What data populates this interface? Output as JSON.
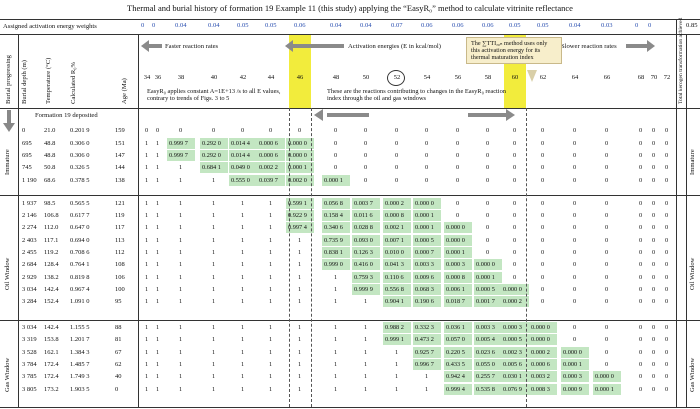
{
  "title": "Thermal and burial history of formation 19 Example 11 (this study) applying the “EasyR₀” method to calculate vitrinite reflectance",
  "weights_label": "Assigned activation energy weights",
  "weights": [
    "0",
    "0",
    "0.04",
    "0.04",
    "0.05",
    "0.05",
    "0.06",
    "0.04",
    "0.04",
    "0.07",
    "0.06",
    "0.06",
    "0.06",
    "0.05",
    "0.05",
    "0.04",
    "0.03",
    "0",
    "0",
    "0.85"
  ],
  "energies": [
    "34",
    "36",
    "38",
    "40",
    "42",
    "44",
    "46",
    "48",
    "50",
    "52",
    "54",
    "56",
    "58",
    "60",
    "62",
    "64",
    "66",
    "68",
    "70",
    "72"
  ],
  "header": {
    "faster": "Faster reaction rates",
    "activation": "Activation energies (E in kcal/mol)",
    "slower": "Slower reaction rates",
    "col_burial": "Burial progressing",
    "col_depth": "Burial depth (m)",
    "col_temp": "Temperature (°C)",
    "col_ro": "Calculated R₀%",
    "col_age": "Age (Ma)",
    "col_total": "Total kerogen transformation achieved",
    "callout": "The ∑TTIₐ₀ₙ method uses only this activation energy for its thermal maturation index"
  },
  "notes": {
    "easyro": "EasyR₀ applies constant A=1E+13 /s to all E values, contrary to trends of Figs. 3 to 5",
    "reactions": "These are the reactions contributing to changes in the EasyR₀ reaction index through the oil and gas windows",
    "deposited": "Formation 19 deposited"
  },
  "zones": [
    "Immature",
    "Oil Window",
    "Gas Window"
  ],
  "rows": [
    {
      "depth": "0",
      "temp": "21.0",
      "ro": "0.201 9",
      "age": "159",
      "cells": [
        "0",
        "0",
        "0",
        "0",
        "0",
        "0",
        "0",
        "0",
        "0",
        "0",
        "0",
        "0",
        "0",
        "0",
        "0",
        "0",
        "0",
        "0",
        "0",
        "0"
      ]
    },
    {
      "depth": "695",
      "temp": "48.8",
      "ro": "0.306 0",
      "age": "151",
      "cells": [
        "1",
        "1",
        "0.999 7",
        "0.292 0",
        "0.014 4",
        "0.000 6",
        "0.000 0",
        "0",
        "0",
        "0",
        "0",
        "0",
        "0",
        "0",
        "0",
        "0",
        "0",
        "0",
        "0",
        "0"
      ]
    },
    {
      "depth": "695",
      "temp": "48.8",
      "ro": "0.306 0",
      "age": "147",
      "cells": [
        "1",
        "1",
        "0.999 7",
        "0.292 0",
        "0.014 4",
        "0.000 6",
        "0.000 0",
        "0",
        "0",
        "0",
        "0",
        "0",
        "0",
        "0",
        "0",
        "0",
        "0",
        "0",
        "0",
        "0"
      ]
    },
    {
      "depth": "745",
      "temp": "50.8",
      "ro": "0.326 5",
      "age": "144",
      "cells": [
        "1",
        "1",
        "1",
        "0.684 1",
        "0.049 0",
        "0.002 2",
        "0.000 1",
        "0",
        "0",
        "0",
        "0",
        "0",
        "0",
        "0",
        "0",
        "0",
        "0",
        "0",
        "0",
        "0"
      ]
    },
    {
      "depth": "1 190",
      "temp": "68.6",
      "ro": "0.378 5",
      "age": "138",
      "cells": [
        "1",
        "1",
        "1",
        "1",
        "0.555 0",
        "0.039 7",
        "0.002 0",
        "0.000 1",
        "0",
        "0",
        "0",
        "0",
        "0",
        "0",
        "0",
        "0",
        "0",
        "0",
        "0",
        "0"
      ]
    },
    {
      "depth": "1 937",
      "temp": "98.5",
      "ro": "0.565 5",
      "age": "121",
      "cells": [
        "1",
        "1",
        "1",
        "1",
        "1",
        "1",
        "0.599 1",
        "0.056 8",
        "0.003 7",
        "0.000 2",
        "0.000 0",
        "0",
        "0",
        "0",
        "0",
        "0",
        "0",
        "0",
        "0",
        "0"
      ]
    },
    {
      "depth": "2 146",
      "temp": "106.8",
      "ro": "0.617 7",
      "age": "119",
      "cells": [
        "1",
        "1",
        "1",
        "1",
        "1",
        "1",
        "0.922 9",
        "0.158 4",
        "0.011 6",
        "0.000 8",
        "0.000 1",
        "0",
        "0",
        "0",
        "0",
        "0",
        "0",
        "0",
        "0",
        "0"
      ]
    },
    {
      "depth": "2 274",
      "temp": "112.0",
      "ro": "0.647 0",
      "age": "117",
      "cells": [
        "1",
        "1",
        "1",
        "1",
        "1",
        "1",
        "0.997 4",
        "0.340 6",
        "0.028 8",
        "0.002 1",
        "0.000 1",
        "0.000 0",
        "0",
        "0",
        "0",
        "0",
        "0",
        "0",
        "0",
        "0"
      ]
    },
    {
      "depth": "2 403",
      "temp": "117.1",
      "ro": "0.694 0",
      "age": "113",
      "cells": [
        "1",
        "1",
        "1",
        "1",
        "1",
        "1",
        "1",
        "0.735 9",
        "0.093 0",
        "0.007 1",
        "0.000 5",
        "0.000 0",
        "0",
        "0",
        "0",
        "0",
        "0",
        "0",
        "0",
        "0"
      ]
    },
    {
      "depth": "2 455",
      "temp": "119.2",
      "ro": "0.708 6",
      "age": "112",
      "cells": [
        "1",
        "1",
        "1",
        "1",
        "1",
        "1",
        "1",
        "0.838 1",
        "0.126 3",
        "0.010 0",
        "0.000 7",
        "0.000 1",
        "0",
        "0",
        "0",
        "0",
        "0",
        "0",
        "0",
        "0"
      ]
    },
    {
      "depth": "2 684",
      "temp": "128.4",
      "ro": "0.764 1",
      "age": "108",
      "cells": [
        "1",
        "1",
        "1",
        "1",
        "1",
        "1",
        "1",
        "0.999 0",
        "0.416 0",
        "0.041 3",
        "0.003 3",
        "0.000 3",
        "0.000 0",
        "0",
        "0",
        "0",
        "0",
        "0",
        "0",
        "0"
      ]
    },
    {
      "depth": "2 929",
      "temp": "138.2",
      "ro": "0.819 8",
      "age": "106",
      "cells": [
        "1",
        "1",
        "1",
        "1",
        "1",
        "1",
        "1",
        "1",
        "0.759 3",
        "0.110 6",
        "0.009 6",
        "0.000 8",
        "0.000 1",
        "0",
        "0",
        "0",
        "0",
        "0",
        "0",
        "0"
      ]
    },
    {
      "depth": "3 034",
      "temp": "142.4",
      "ro": "0.967 4",
      "age": "100",
      "cells": [
        "1",
        "1",
        "1",
        "1",
        "1",
        "1",
        "1",
        "1",
        "0.999 9",
        "0.556 8",
        "0.068 3",
        "0.006 1",
        "0.000 5",
        "0.000 0",
        "0",
        "0",
        "0",
        "0",
        "0",
        "0"
      ]
    },
    {
      "depth": "3 284",
      "temp": "152.4",
      "ro": "1.091 0",
      "age": "95",
      "cells": [
        "1",
        "1",
        "1",
        "1",
        "1",
        "1",
        "1",
        "1",
        "1",
        "0.904 1",
        "0.190 6",
        "0.018 7",
        "0.001 7",
        "0.000 2",
        "0",
        "0",
        "0",
        "0",
        "0",
        "0"
      ]
    },
    {
      "depth": "3 034",
      "temp": "142.4",
      "ro": "1.155 5",
      "age": "88",
      "cells": [
        "1",
        "1",
        "1",
        "1",
        "1",
        "1",
        "1",
        "1",
        "1",
        "0.988 2",
        "0.332 3",
        "0.036 1",
        "0.003 3",
        "0.000 3",
        "0.000 0",
        "0",
        "0",
        "0",
        "0",
        "0"
      ]
    },
    {
      "depth": "3 319",
      "temp": "153.8",
      "ro": "1.201 7",
      "age": "81",
      "cells": [
        "1",
        "1",
        "1",
        "1",
        "1",
        "1",
        "1",
        "1",
        "1",
        "0.999 1",
        "0.473 2",
        "0.057 0",
        "0.005 4",
        "0.000 5",
        "0.000 0",
        "0",
        "0",
        "0",
        "0",
        "0"
      ]
    },
    {
      "depth": "3 528",
      "temp": "162.1",
      "ro": "1.384 3",
      "age": "67",
      "cells": [
        "1",
        "1",
        "1",
        "1",
        "1",
        "1",
        "1",
        "1",
        "1",
        "1",
        "0.925 7",
        "0.220 5",
        "0.023 6",
        "0.002 3",
        "0.000 2",
        "0.000 0",
        "0",
        "0",
        "0",
        "0"
      ]
    },
    {
      "depth": "3 784",
      "temp": "172.4",
      "ro": "1.485 7",
      "age": "62",
      "cells": [
        "1",
        "1",
        "1",
        "1",
        "1",
        "1",
        "1",
        "1",
        "1",
        "1",
        "0.996 7",
        "0.433 5",
        "0.055 0",
        "0.005 6",
        "0.000 6",
        "0.000 1",
        "0",
        "0",
        "0",
        "0"
      ]
    },
    {
      "depth": "3 785",
      "temp": "172.4",
      "ro": "1.749 3",
      "age": "40",
      "cells": [
        "1",
        "1",
        "1",
        "1",
        "1",
        "1",
        "1",
        "1",
        "1",
        "1",
        "1",
        "0.942 4",
        "0.255 7",
        "0.030 1",
        "0.003 2",
        "0.000 3",
        "0.000 0",
        "0",
        "0",
        "0"
      ]
    },
    {
      "depth": "3 805",
      "temp": "173.2",
      "ro": "1.903 5",
      "age": "0",
      "cells": [
        "1",
        "1",
        "1",
        "1",
        "1",
        "1",
        "1",
        "1",
        "1",
        "1",
        "1",
        "0.999 4",
        "0.535 8",
        "0.076 9",
        "0.008 3",
        "0.000 9",
        "0.000 1",
        "0",
        "0",
        "0"
      ]
    }
  ]
}
